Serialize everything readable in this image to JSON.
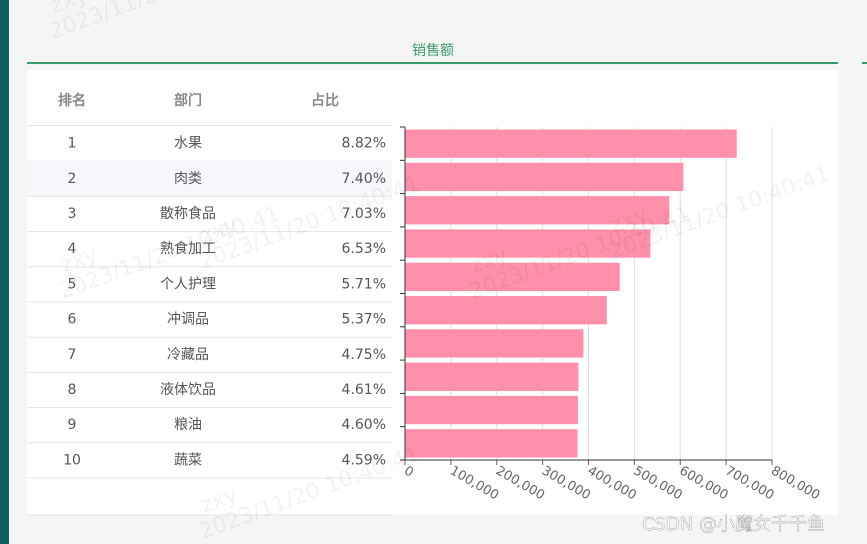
{
  "header": {
    "title": "销售额"
  },
  "table": {
    "columns": [
      "排名",
      "部门",
      "占比"
    ],
    "rows": [
      [
        "1",
        "水果",
        "8.82%"
      ],
      [
        "2",
        "肉类",
        "7.40%"
      ],
      [
        "3",
        "散称食品",
        "7.03%"
      ],
      [
        "4",
        "熟食加工",
        "6.53%"
      ],
      [
        "5",
        "个人护理",
        "5.71%"
      ],
      [
        "6",
        "冲调品",
        "5.37%"
      ],
      [
        "7",
        "冷藏品",
        "4.75%"
      ],
      [
        "8",
        "液体饮品",
        "4.61%"
      ],
      [
        "9",
        "粮油",
        "4.60%"
      ],
      [
        "10",
        "蔬菜",
        "4.59%"
      ]
    ]
  },
  "chart_data": {
    "type": "bar",
    "orientation": "horizontal",
    "color": "#ff8fab",
    "grid": true,
    "values": [
      723000,
      607000,
      576000,
      535000,
      468000,
      440000,
      389000,
      378000,
      377000,
      376000
    ],
    "xlim": [
      0,
      800000
    ],
    "xticks": [
      0,
      {
        "value": 100000,
        "label": "100,000"
      },
      {
        "value": 200000,
        "label": "200,000"
      },
      {
        "value": 300000,
        "label": "300,000"
      },
      {
        "value": 400000,
        "label": "400,000"
      },
      {
        "value": 500000,
        "label": "500,000"
      },
      {
        "value": 600000,
        "label": "600,000"
      },
      {
        "value": 700000,
        "label": "700,000"
      },
      {
        "value": 800000,
        "label": "800,000"
      }
    ]
  },
  "watermark": {
    "user": "zxy",
    "time": "2023/11/20 10:40:41"
  },
  "footer": {
    "credit": "CSDN @小魔女千千鱼"
  }
}
